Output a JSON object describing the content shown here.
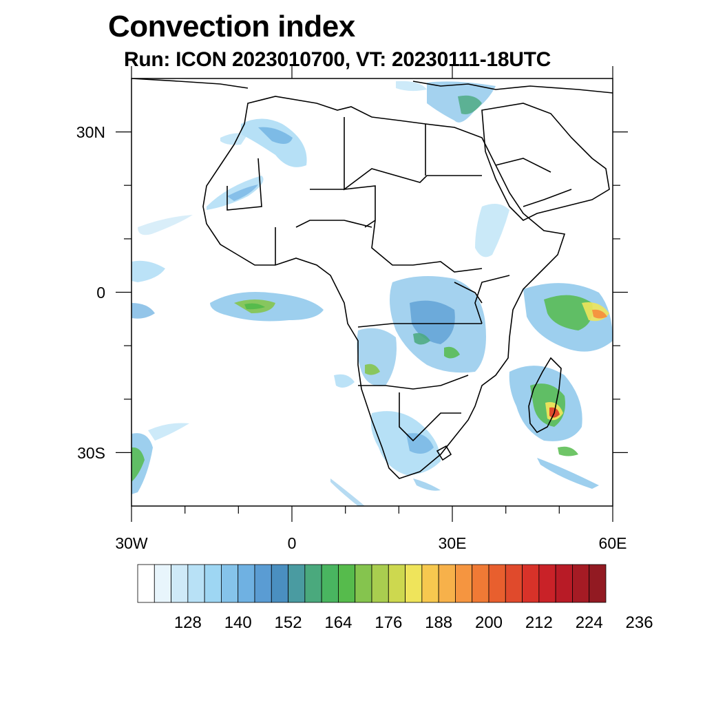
{
  "title": "Convection index",
  "subtitle": "Run: ICON 2023010700,  VT: 20230111-18UTC",
  "map": {
    "lon_range": [
      -30,
      60
    ],
    "lat_range": [
      -40,
      40
    ],
    "lon_ticks": [
      {
        "value": -30,
        "label": "30W"
      },
      {
        "value": 0,
        "label": "0"
      },
      {
        "value": 30,
        "label": "30E"
      },
      {
        "value": 60,
        "label": "60E"
      }
    ],
    "lat_ticks": [
      {
        "value": 30,
        "label": "30N"
      },
      {
        "value": 0,
        "label": "0"
      },
      {
        "value": -30,
        "label": "30S"
      }
    ]
  },
  "colorbar": {
    "colors": [
      "#ffffff",
      "#e8f5fc",
      "#cfeaf8",
      "#b8e1f6",
      "#9ed6f3",
      "#85c3ea",
      "#6fb1e2",
      "#5a9cd3",
      "#4a8fc0",
      "#4a9ba1",
      "#4aa97d",
      "#49b560",
      "#56bb4c",
      "#85c44e",
      "#a9cd4f",
      "#cdd84f",
      "#efe45b",
      "#f7c84f",
      "#f7b14a",
      "#f59540",
      "#f07a35",
      "#e85f2e",
      "#e04a2c",
      "#d83229",
      "#c92228",
      "#b81b26",
      "#a51b24",
      "#921a22"
    ],
    "tick_labels": [
      "128",
      "140",
      "152",
      "164",
      "176",
      "188",
      "200",
      "212",
      "224",
      "236"
    ]
  },
  "legend_colors": {
    "map_frame": "#000000",
    "coastlines": "#000000"
  }
}
